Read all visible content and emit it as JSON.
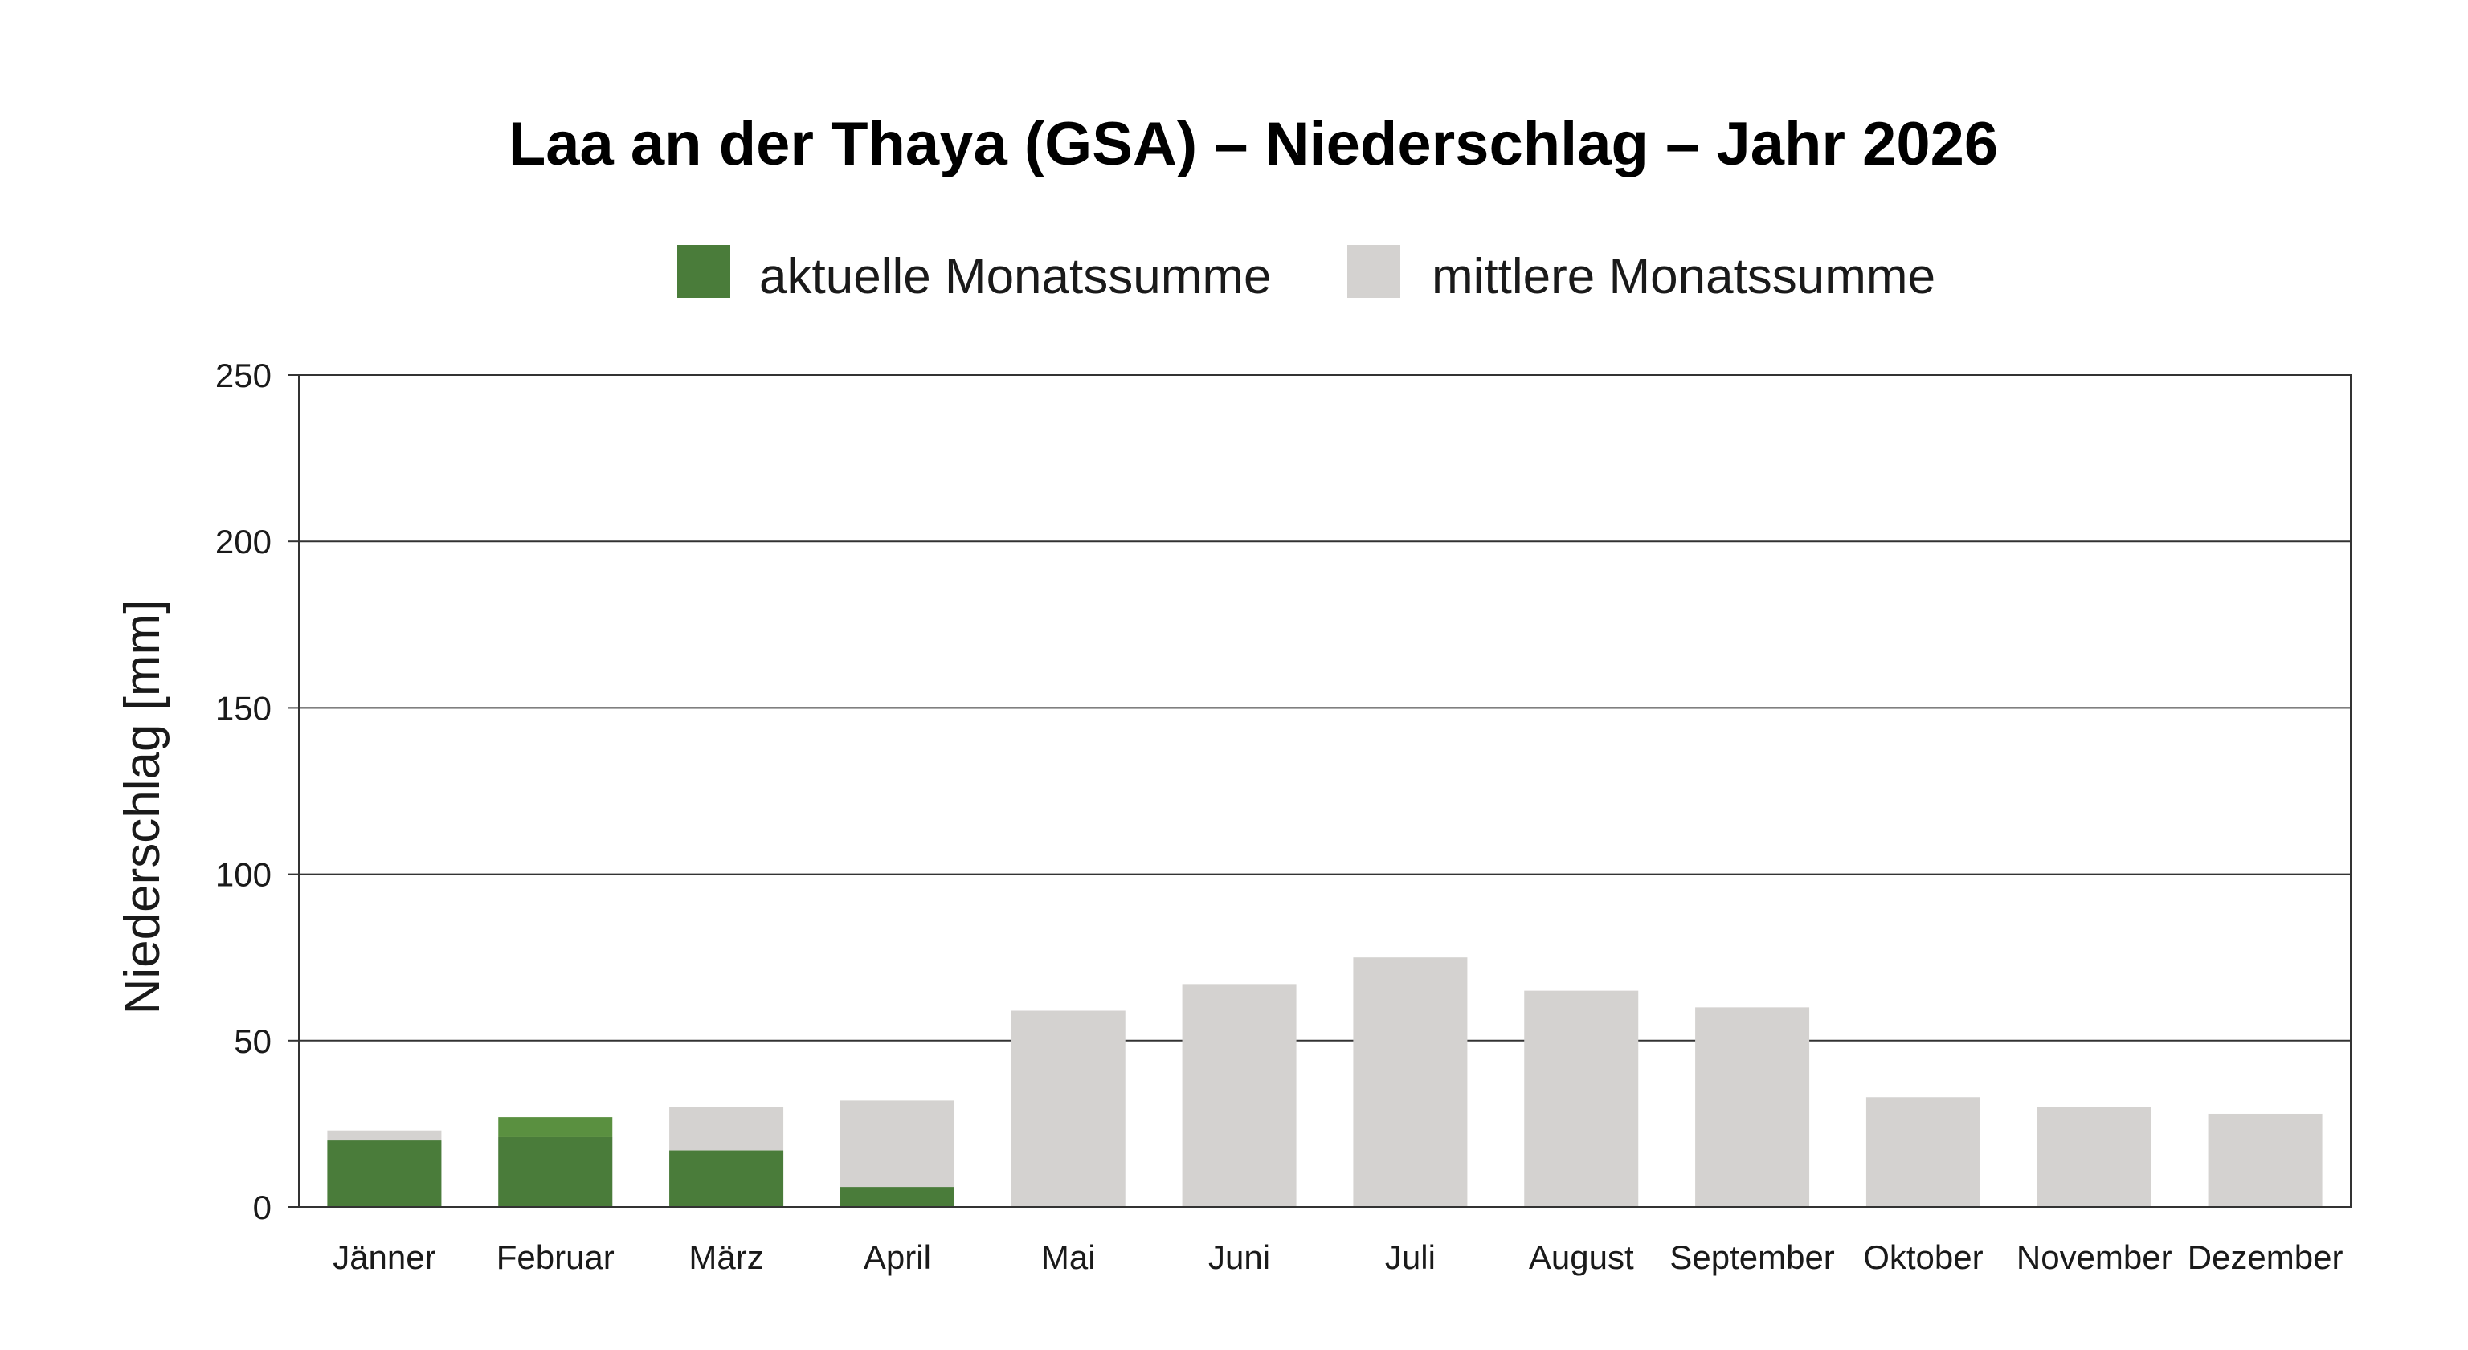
{
  "chart_data": {
    "type": "bar",
    "title": "Laa an der Thaya (GSA) – Niederschlag – Jahr 2026",
    "ylabel": "Niederschlag [mm]",
    "xlabel": "",
    "ylim": [
      0,
      250
    ],
    "yticks": [
      0,
      50,
      100,
      150,
      200,
      250
    ],
    "grid": true,
    "legend_position": "top-center",
    "categories": [
      "Jänner",
      "Februar",
      "März",
      "April",
      "Mai",
      "Juni",
      "Juli",
      "August",
      "September",
      "Oktober",
      "November",
      "Dezember"
    ],
    "series": [
      {
        "name": "aktuelle Monatssumme",
        "color": "#4a7c3a",
        "values": [
          20,
          27,
          17,
          6,
          null,
          null,
          null,
          null,
          null,
          null,
          null,
          null
        ]
      },
      {
        "name": "mittlere Monatssumme",
        "color": "#d4d2d0",
        "values": [
          23,
          21,
          30,
          32,
          59,
          67,
          75,
          65,
          60,
          33,
          30,
          28
        ]
      }
    ],
    "colors": {
      "actual_dark": "#4a7c3a",
      "actual_excess": "#5a9040",
      "mean": "#d4d2d0",
      "grid": "#333333"
    }
  }
}
